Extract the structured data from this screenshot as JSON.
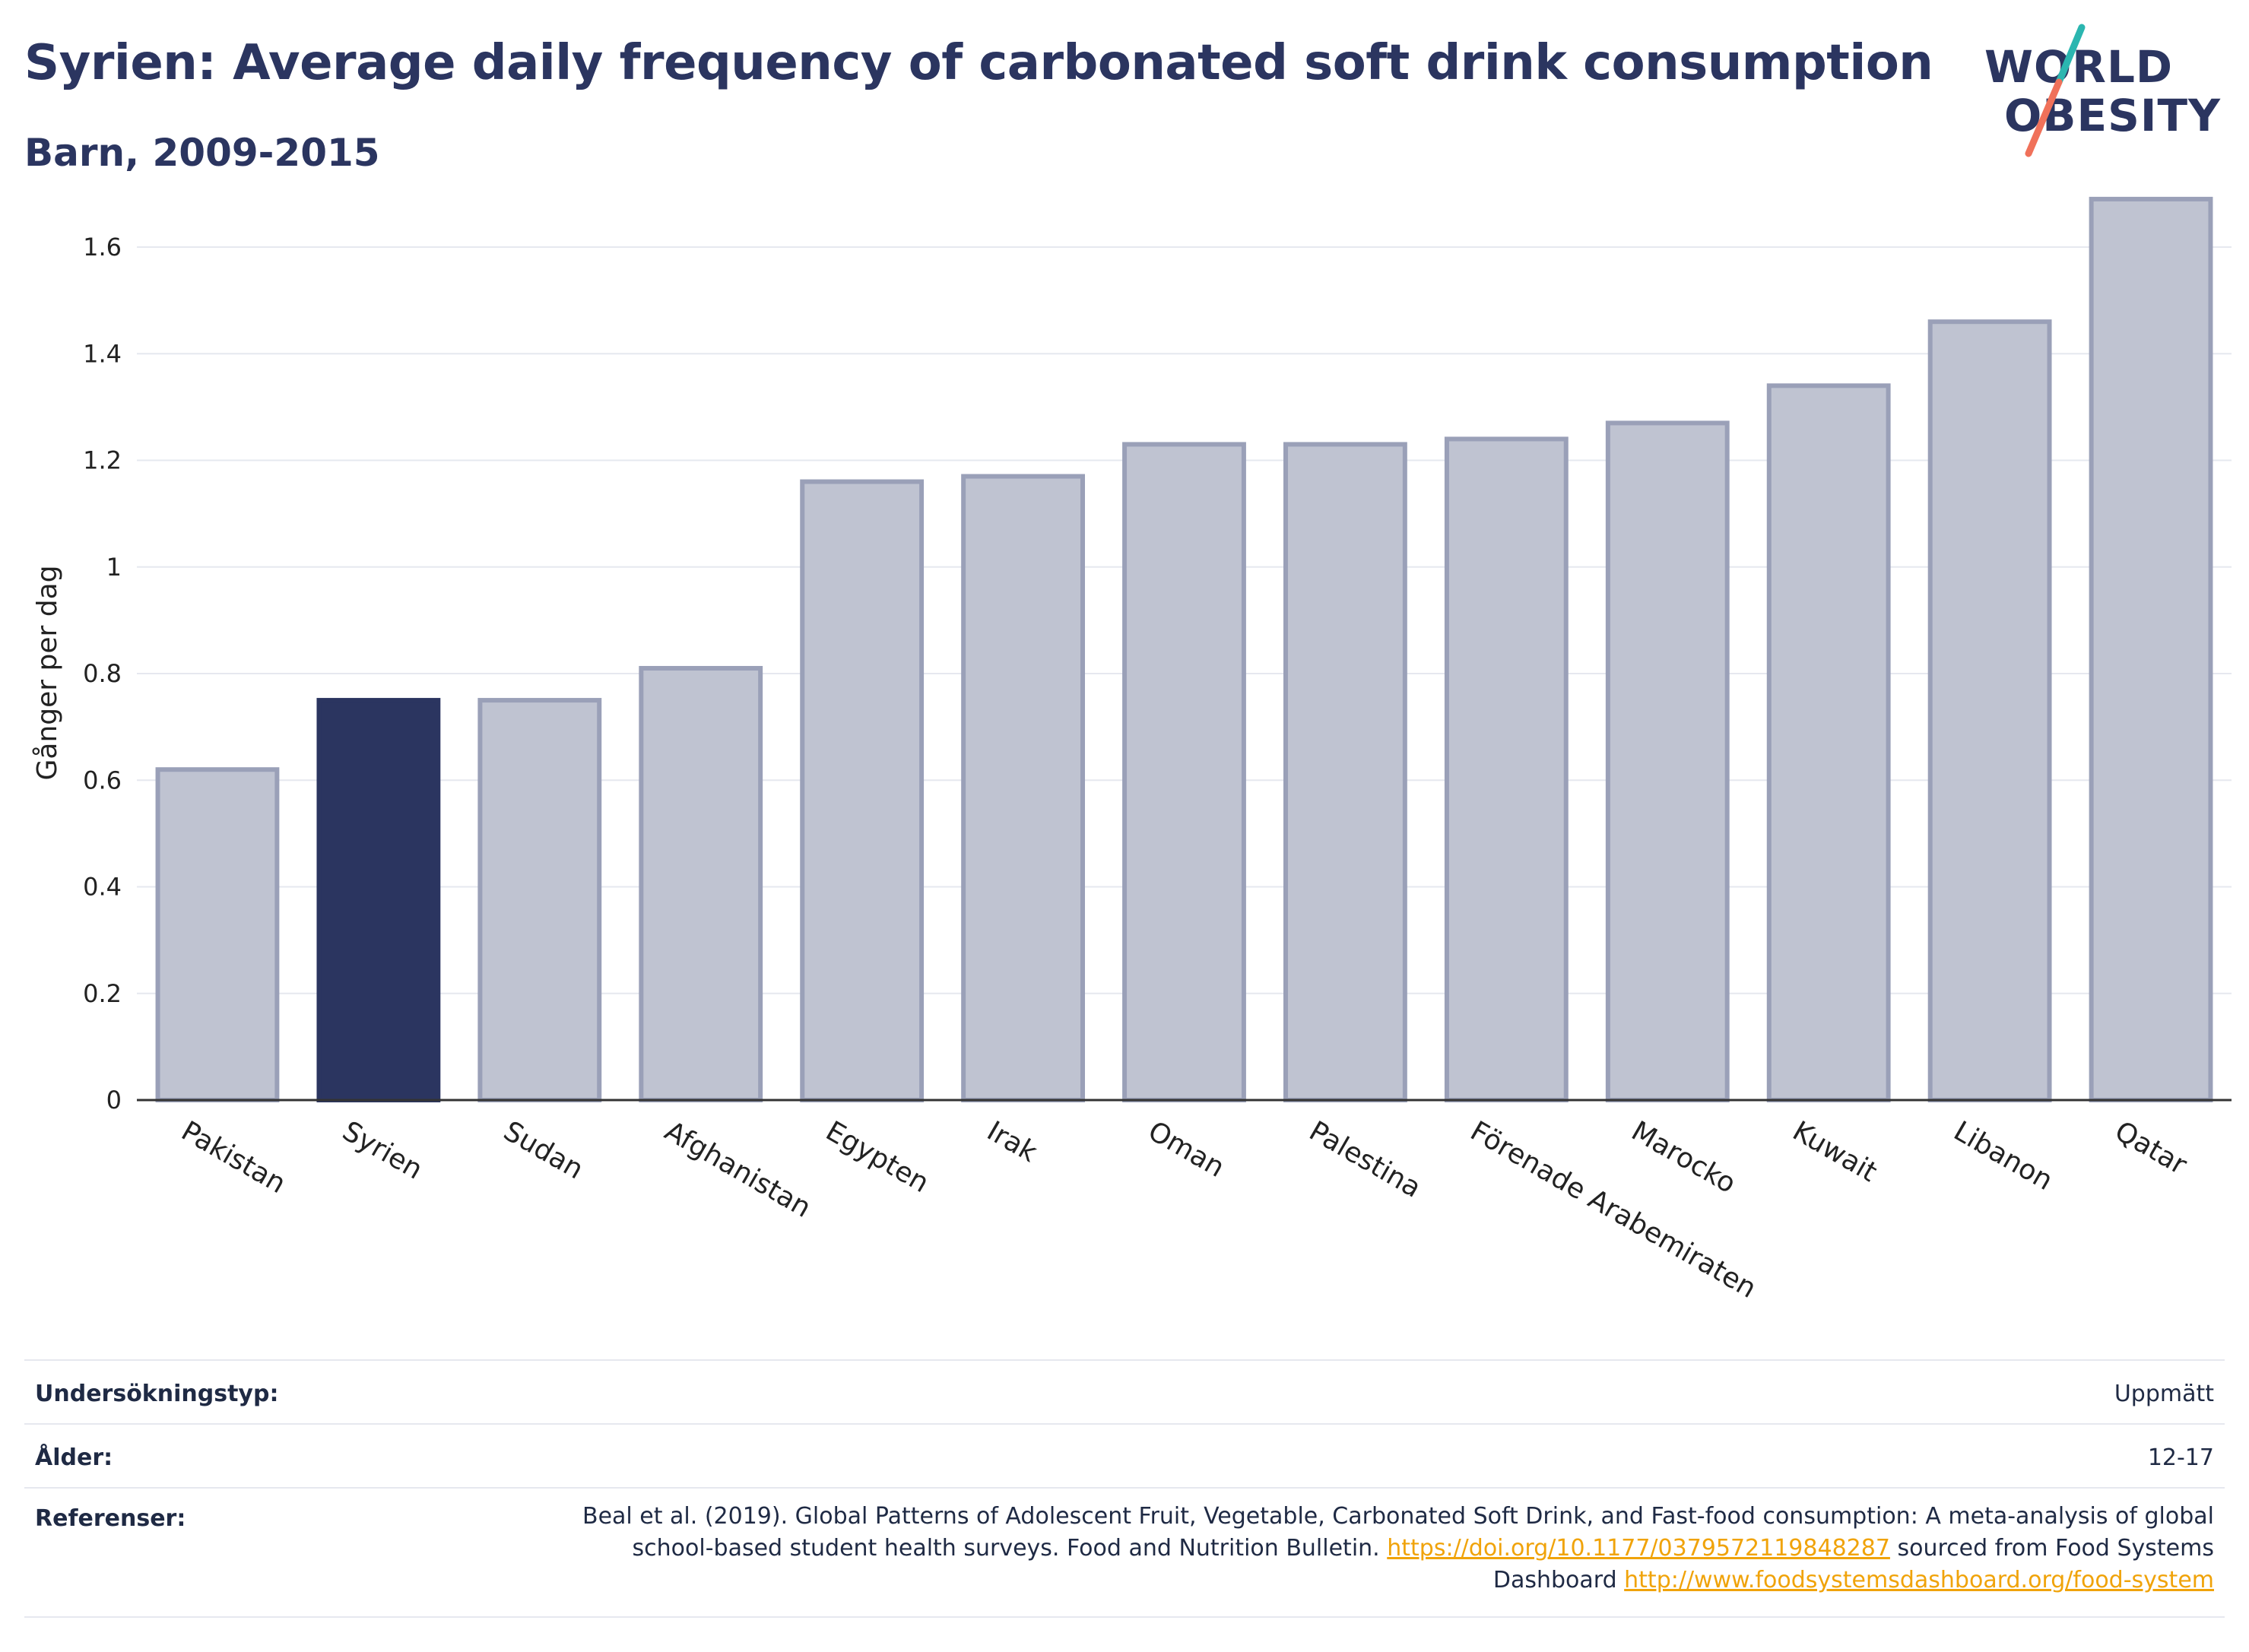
{
  "header": {
    "title": "Syrien: Average daily frequency of carbonated soft drink consumption",
    "subtitle": "Barn, 2009-2015"
  },
  "logo": {
    "line1": "WORLD",
    "line2": "OBESITY",
    "accent_teal": "#2bb6b0",
    "accent_coral": "#f0715a"
  },
  "colors": {
    "highlight": "#2b3560",
    "bar_fill": "#bfc3d1",
    "bar_stroke": "#9aa0b8",
    "grid": "#e6e8ef",
    "axis": "#333333"
  },
  "chart_data": {
    "type": "bar",
    "title": "Syrien: Average daily frequency of carbonated soft drink consumption",
    "subtitle": "Barn, 2009-2015",
    "xlabel": "",
    "ylabel": "Gånger per dag",
    "ylim": [
      0,
      1.75
    ],
    "yticks": [
      0,
      0.2,
      0.4,
      0.6,
      0.8,
      1,
      1.2,
      1.4,
      1.6
    ],
    "ytick_labels": [
      "0",
      "0.2",
      "0.4",
      "0.6",
      "0.8",
      "1",
      "1.2",
      "1.4",
      "1.6"
    ],
    "grid": true,
    "highlight": "Syrien",
    "categories": [
      "Pakistan",
      "Syrien",
      "Sudan",
      "Afghanistan",
      "Egypten",
      "Irak",
      "Oman",
      "Palestina",
      "Förenade Arabemiraten",
      "Marocko",
      "Kuwait",
      "Libanon",
      "Qatar"
    ],
    "values": [
      0.62,
      0.75,
      0.75,
      0.81,
      1.16,
      1.17,
      1.23,
      1.23,
      1.24,
      1.27,
      1.34,
      1.46,
      1.69
    ]
  },
  "meta": {
    "survey_label": "Undersökningstyp:",
    "survey_value": "Uppmätt",
    "age_label": "Ålder:",
    "age_value": "12-17",
    "refs_label": "Referenser:",
    "refs_text_1": "Beal et al. (2019). Global Patterns of Adolescent Fruit, Vegetable, Carbonated Soft Drink, and Fast-food consumption: A meta-analysis of global school-based student health surveys. Food and Nutrition Bulletin. ",
    "refs_link_1": "https://doi.org/10.1177/0379572119848287",
    "refs_text_2": " sourced from Food Systems Dashboard ",
    "refs_link_2": "http://www.foodsystemsdashboard.org/food-system"
  }
}
